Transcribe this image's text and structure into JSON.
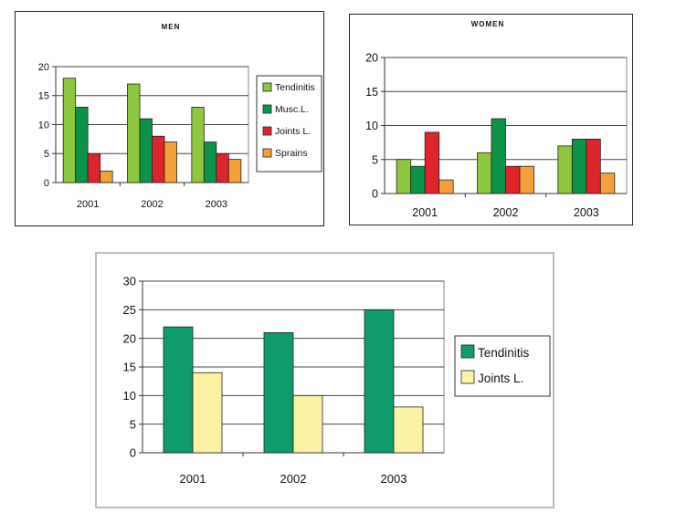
{
  "colors": {
    "tendinitis": "#8dc63f",
    "musc": "#0b9447",
    "joints": "#e0242c",
    "sprains": "#f5a03a",
    "tendinitis_total": "#0e9c6c",
    "joints_total": "#fbf2a4"
  },
  "chart_data": [
    {
      "type": "bar",
      "title": "MEN",
      "categories": [
        "2001",
        "2002",
        "2003"
      ],
      "ylim": [
        0,
        20
      ],
      "yticks": [
        "0",
        "5",
        "10",
        "15",
        "20"
      ],
      "grid": true,
      "legend": "right",
      "series": [
        {
          "name": "Tendinitis",
          "values": [
            18,
            17,
            13
          ],
          "color": "#8dc63f"
        },
        {
          "name": "Musc.L.",
          "values": [
            13,
            11,
            7
          ],
          "color": "#0b9447"
        },
        {
          "name": "Joints L.",
          "values": [
            5,
            8,
            5
          ],
          "color": "#e0242c"
        },
        {
          "name": "Sprains",
          "values": [
            2,
            7,
            4
          ],
          "color": "#f5a03a"
        }
      ]
    },
    {
      "type": "bar",
      "title": "WOMEN",
      "categories": [
        "2001",
        "2002",
        "2003"
      ],
      "ylim": [
        0,
        20
      ],
      "yticks": [
        "0",
        "5",
        "10",
        "15",
        "20"
      ],
      "grid": true,
      "legend": "none",
      "series": [
        {
          "values": [
            5,
            6,
            7
          ],
          "color": "#8dc63f"
        },
        {
          "values": [
            4,
            11,
            8
          ],
          "color": "#0b9447"
        },
        {
          "values": [
            9,
            4,
            8
          ],
          "color": "#e0242c"
        },
        {
          "values": [
            2,
            4,
            3
          ],
          "color": "#f5a03a"
        }
      ]
    },
    {
      "type": "bar",
      "title": "",
      "categories": [
        "2001",
        "2002",
        "2003"
      ],
      "ylim": [
        0,
        30
      ],
      "yticks": [
        "0",
        "5",
        "10",
        "15",
        "20",
        "25",
        "30"
      ],
      "grid": true,
      "legend": "right",
      "series": [
        {
          "name": "Tendinitis",
          "values": [
            22,
            21,
            25
          ],
          "color": "#0e9c6c"
        },
        {
          "name": "Joints L.",
          "values": [
            14,
            10,
            8
          ],
          "color": "#fbf2a4"
        }
      ]
    }
  ]
}
